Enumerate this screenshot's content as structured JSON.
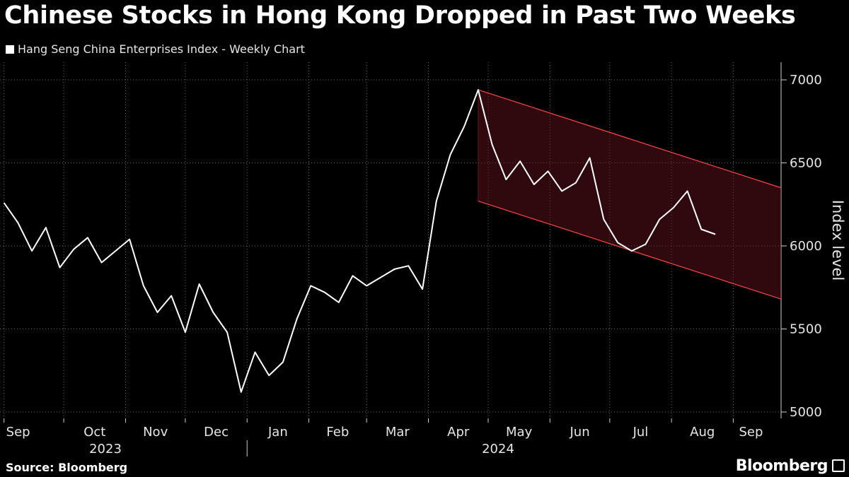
{
  "chart_data": {
    "type": "line",
    "title": "Chinese Stocks in Hong Kong Dropped in Past Two Weeks",
    "legend": [
      "Hang Seng China Enterprises Index - Weekly Chart"
    ],
    "ylabel": "Index level",
    "ylim": [
      5000,
      7000
    ],
    "yticks": [
      5000,
      5500,
      6000,
      6500,
      7000
    ],
    "xlim": [
      "2023-08-30",
      "2024-09-25"
    ],
    "x_month_labels": [
      "Sep",
      "Oct",
      "Nov",
      "Dec",
      "Jan",
      "Feb",
      "Mar",
      "Apr",
      "May",
      "Jun",
      "Jul",
      "Aug",
      "Sep"
    ],
    "x_year_labels": [
      "2023",
      "2024"
    ],
    "grid": "horizontal-dotted",
    "series": [
      {
        "name": "Hang Seng China Enterprises Index - Weekly Chart",
        "color": "#ffffff",
        "points": [
          [
            "2023-09-01",
            6260
          ],
          [
            "2023-09-08",
            6140
          ],
          [
            "2023-09-15",
            5970
          ],
          [
            "2023-09-22",
            6110
          ],
          [
            "2023-09-29",
            5870
          ],
          [
            "2023-10-06",
            5980
          ],
          [
            "2023-10-13",
            6050
          ],
          [
            "2023-10-20",
            5900
          ],
          [
            "2023-10-27",
            5970
          ],
          [
            "2023-11-03",
            6040
          ],
          [
            "2023-11-10",
            5760
          ],
          [
            "2023-11-17",
            5600
          ],
          [
            "2023-11-24",
            5700
          ],
          [
            "2023-12-01",
            5480
          ],
          [
            "2023-12-08",
            5770
          ],
          [
            "2023-12-15",
            5600
          ],
          [
            "2023-12-22",
            5480
          ],
          [
            "2023-12-29",
            5120
          ],
          [
            "2024-01-05",
            5360
          ],
          [
            "2024-01-12",
            5220
          ],
          [
            "2024-01-19",
            5300
          ],
          [
            "2024-01-26",
            5560
          ],
          [
            "2024-02-02",
            5760
          ],
          [
            "2024-02-09",
            5720
          ],
          [
            "2024-02-16",
            5660
          ],
          [
            "2024-02-23",
            5820
          ],
          [
            "2024-03-01",
            5760
          ],
          [
            "2024-03-08",
            5810
          ],
          [
            "2024-03-15",
            5860
          ],
          [
            "2024-03-22",
            5880
          ],
          [
            "2024-03-29",
            5740
          ],
          [
            "2024-04-05",
            6270
          ],
          [
            "2024-04-12",
            6550
          ],
          [
            "2024-04-19",
            6720
          ],
          [
            "2024-04-26",
            6940
          ],
          [
            "2024-05-03",
            6610
          ],
          [
            "2024-05-10",
            6400
          ],
          [
            "2024-05-17",
            6510
          ],
          [
            "2024-05-24",
            6370
          ],
          [
            "2024-05-31",
            6450
          ],
          [
            "2024-06-07",
            6330
          ],
          [
            "2024-06-14",
            6380
          ],
          [
            "2024-06-21",
            6530
          ],
          [
            "2024-06-28",
            6160
          ],
          [
            "2024-07-05",
            6020
          ],
          [
            "2024-07-12",
            5970
          ],
          [
            "2024-07-19",
            6010
          ],
          [
            "2024-07-26",
            6160
          ],
          [
            "2024-08-02",
            6230
          ],
          [
            "2024-08-09",
            6330
          ],
          [
            "2024-08-16",
            6100
          ],
          [
            "2024-08-23",
            6070
          ]
        ]
      }
    ],
    "annotations": [
      {
        "type": "downward-channel",
        "color": "#ff4444",
        "upper": [
          [
            "2024-04-26",
            6940
          ],
          [
            "2024-09-25",
            6350
          ]
        ],
        "lower": [
          [
            "2024-04-26",
            6270
          ],
          [
            "2024-09-25",
            5680
          ]
        ]
      }
    ]
  },
  "footer": {
    "source": "Source: Bloomberg",
    "brand": "Bloomberg"
  }
}
